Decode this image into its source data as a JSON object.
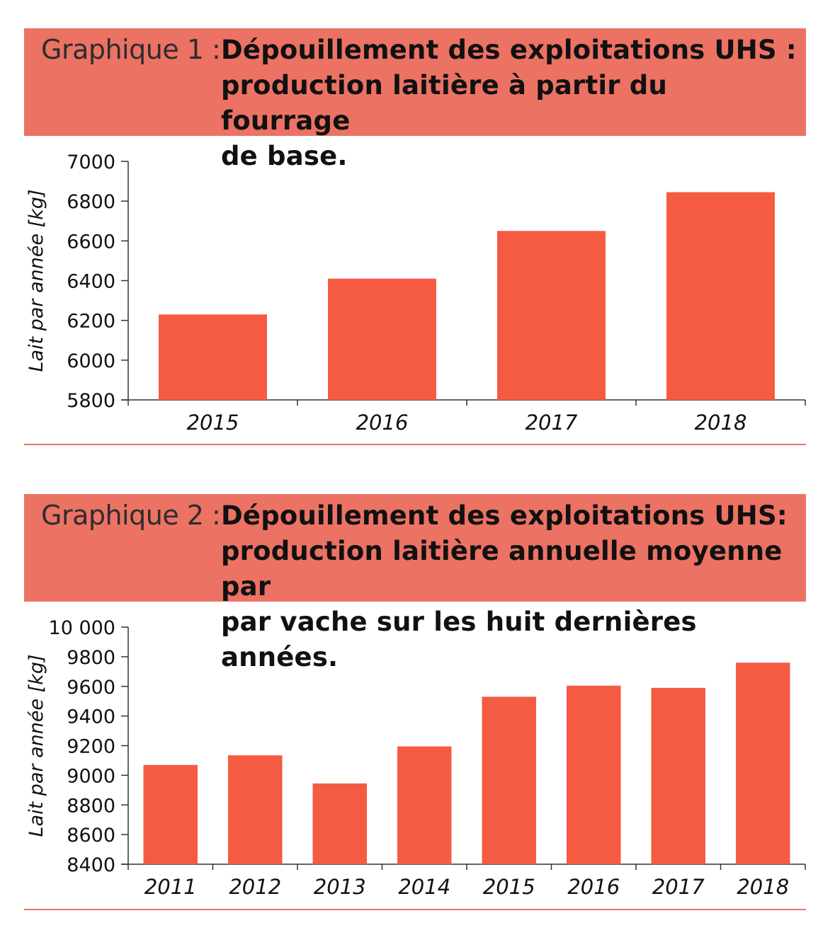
{
  "colors": {
    "header_bg": "#ec7264",
    "bar": "#f45b42",
    "separator": "#ec7264"
  },
  "charts": [
    {
      "label": "Graphique 1 :",
      "title_lines": [
        "Dépouillement des exploitations UHS :",
        "production laitière à partir du fourrage",
        "de base."
      ]
    },
    {
      "label": "Graphique 2 :",
      "title_lines": [
        "Dépouillement des exploitations UHS:",
        "production laitière annuelle moyenne par",
        "par vache sur les huit dernières années."
      ]
    }
  ],
  "chart_data": [
    {
      "type": "bar",
      "title": "Dépouillement des exploitations UHS : production laitière à partir du fourrage de base.",
      "categories": [
        "2015",
        "2016",
        "2017",
        "2018"
      ],
      "values": [
        6230,
        6410,
        6650,
        6845
      ],
      "ylabel": "Lait par année [kg]",
      "xlabel": "",
      "ylim": [
        5800,
        7000
      ],
      "yticks": [
        5800,
        6000,
        6200,
        6400,
        6600,
        6800,
        7000
      ],
      "ytick_labels": [
        "5800",
        "6000",
        "6200",
        "6400",
        "6600",
        "6800",
        "7000"
      ],
      "grid": false
    },
    {
      "type": "bar",
      "title": "Dépouillement des exploitations UHS: production laitière annuelle moyenne par par vache sur les huit dernières années.",
      "categories": [
        "2011",
        "2012",
        "2013",
        "2014",
        "2015",
        "2016",
        "2017",
        "2018"
      ],
      "values": [
        9070,
        9135,
        8945,
        9195,
        9530,
        9605,
        9590,
        9760
      ],
      "ylabel": "Lait par année [kg]",
      "xlabel": "",
      "ylim": [
        8400,
        10000
      ],
      "yticks": [
        8400,
        8600,
        8800,
        9000,
        9200,
        9400,
        9600,
        9800,
        10000
      ],
      "ytick_labels": [
        "8400",
        "8600",
        "8800",
        "9000",
        "9200",
        "9400",
        "9600",
        "9800",
        "10 000"
      ],
      "grid": false
    }
  ]
}
